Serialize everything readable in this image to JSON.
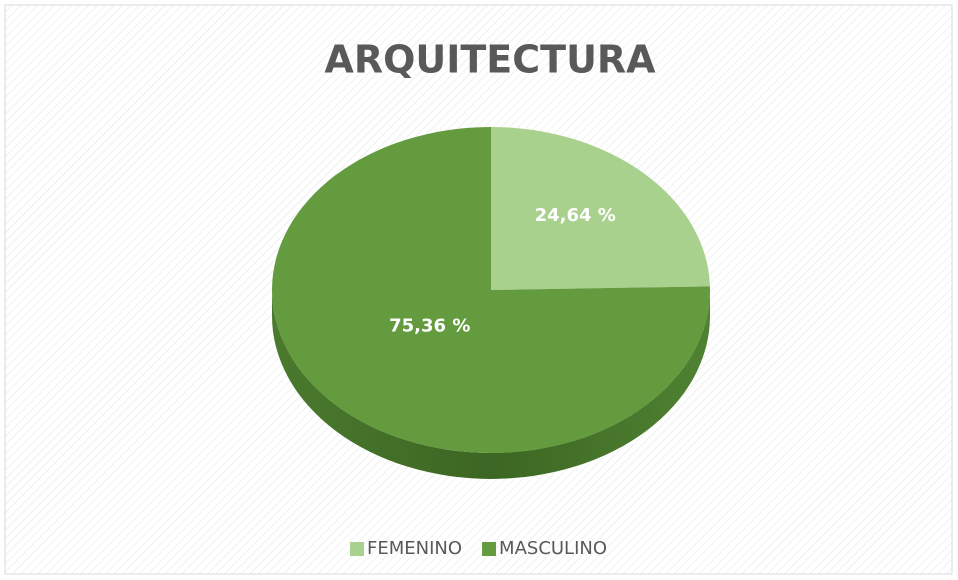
{
  "chart_data": {
    "type": "pie",
    "title": "ARQUITECTURA",
    "categories": [
      "FEMENINO",
      "MASCULINO"
    ],
    "values": [
      24.64,
      75.36
    ],
    "value_labels": [
      "24,64 %",
      "75,36 %"
    ],
    "colors": [
      "#a9d18e",
      "#639b3e"
    ],
    "legend": "bottom"
  }
}
